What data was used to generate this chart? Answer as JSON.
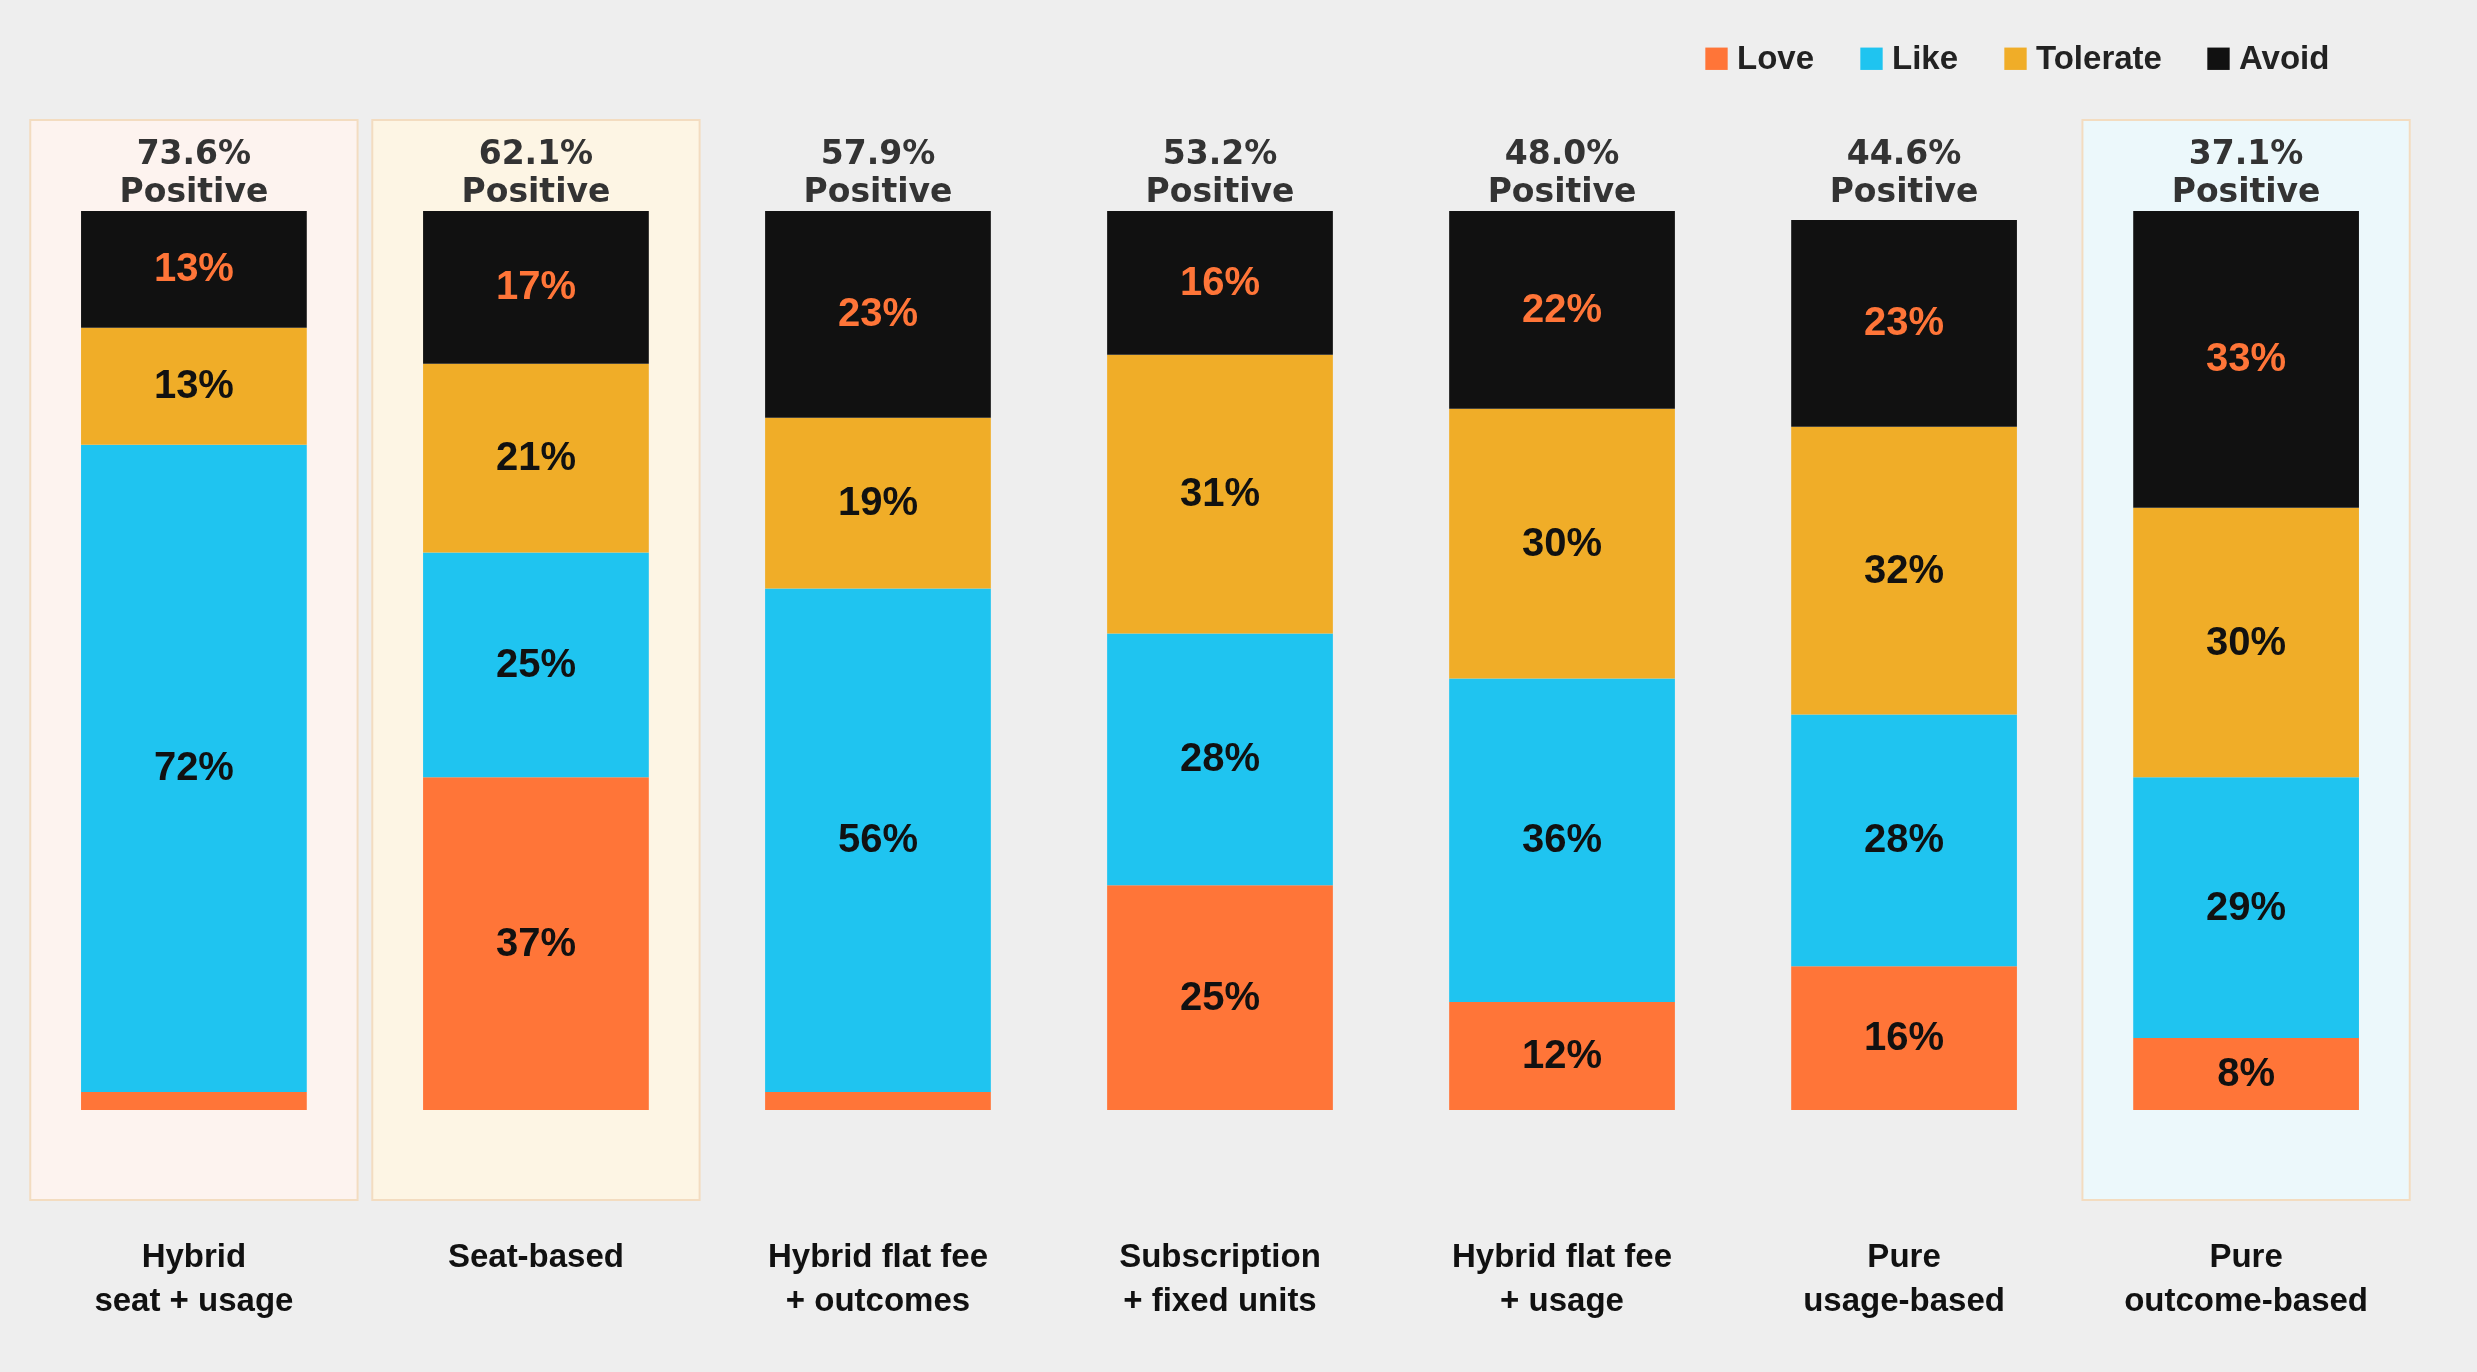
{
  "chart_data": {
    "type": "bar",
    "stacked": true,
    "legend": "top right",
    "categories": [
      "Hybrid\nseat + usage",
      "Seat-based",
      "Hybrid flat fee\n+ outcomes",
      "Subscription\n+ fixed units",
      "Hybrid flat fee\n+ usage",
      "Pure\nusage-based",
      "Pure\noutcome-based"
    ],
    "series": [
      {
        "name": "Love",
        "color": "#ff7538",
        "values": [
          2,
          37,
          2,
          25,
          12,
          16,
          8
        ],
        "value_labels": [
          null,
          "37%",
          null,
          "25%",
          "12%",
          "16%",
          "8%"
        ]
      },
      {
        "name": "Like",
        "color": "#1fc4f0",
        "values": [
          72,
          25,
          56,
          28,
          36,
          28,
          29
        ],
        "value_labels": [
          "72%",
          "25%",
          "56%",
          "28%",
          "36%",
          "28%",
          "29%"
        ]
      },
      {
        "name": "Tolerate",
        "color": "#f0ad28",
        "values": [
          13,
          21,
          19,
          31,
          30,
          32,
          30
        ],
        "value_labels": [
          "13%",
          "21%",
          "19%",
          "31%",
          "30%",
          "32%",
          "30%"
        ]
      },
      {
        "name": "Avoid",
        "color": "#111111",
        "values": [
          13,
          17,
          23,
          16,
          22,
          23,
          33
        ],
        "value_labels": [
          "13%",
          "17%",
          "23%",
          "16%",
          "22%",
          "23%",
          "33%"
        ]
      }
    ],
    "annotations": [
      "73.6%\nPositive",
      "62.1%\nPositive",
      "57.9%\nPositive",
      "53.2%\nPositive",
      "48.0%\nPositive",
      "44.6%\nPositive",
      "37.1%\nPositive"
    ],
    "bands": [
      {
        "axis": "x",
        "from": "Hybrid\nseat + usage",
        "to": "Hybrid\nseat + usage",
        "color": "#fdf3ef"
      },
      {
        "axis": "x",
        "from": "Seat-based",
        "to": "Seat-based",
        "color": "#fdf5e4"
      },
      {
        "axis": "x",
        "from": "Pure\noutcome-based",
        "to": "Pure\noutcome-based",
        "color": "#ecf8fb"
      }
    ]
  }
}
